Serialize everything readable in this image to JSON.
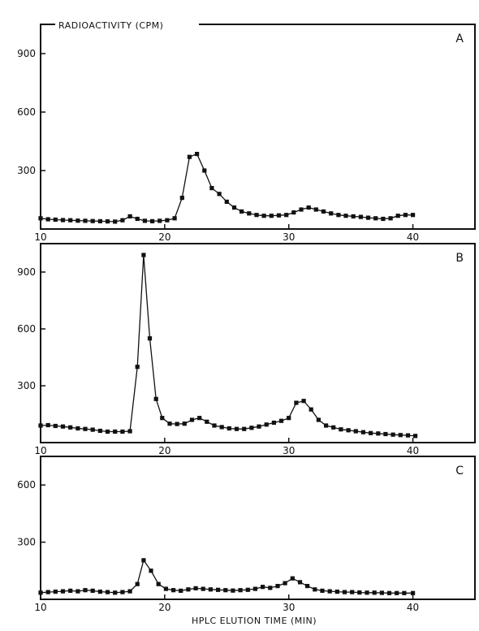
{
  "figure": {
    "ylabel": "RADIOACTIVITY (CPM)",
    "xlabel": "HPLC ELUTION TIME (MIN)"
  },
  "chart_data": [
    {
      "type": "line",
      "panel": "A",
      "xlim": [
        10,
        45
      ],
      "ylim": [
        0,
        1050
      ],
      "xticks": [
        10,
        20,
        30,
        40
      ],
      "yticks": [
        300,
        600,
        900
      ],
      "x": [
        10,
        10.6,
        11.2,
        11.8,
        12.4,
        13,
        13.6,
        14.2,
        14.8,
        15.4,
        16,
        16.6,
        17.2,
        17.8,
        18.4,
        19,
        19.6,
        20.2,
        20.8,
        21.4,
        22,
        22.6,
        23.2,
        23.8,
        24.4,
        25,
        25.6,
        26.2,
        26.8,
        27.4,
        28,
        28.6,
        29.2,
        29.8,
        30.4,
        31,
        31.6,
        32.2,
        32.8,
        33.4,
        34,
        34.6,
        35.2,
        35.8,
        36.4,
        37,
        37.6,
        38.2,
        38.8,
        39.4,
        40
      ],
      "series": [
        {
          "values": [
            55,
            50,
            48,
            46,
            45,
            43,
            42,
            41,
            40,
            39,
            38,
            45,
            65,
            52,
            42,
            40,
            42,
            45,
            55,
            160,
            370,
            385,
            300,
            210,
            180,
            140,
            110,
            90,
            80,
            72,
            68,
            68,
            70,
            72,
            85,
            100,
            110,
            100,
            90,
            80,
            72,
            68,
            65,
            62,
            58,
            55,
            52,
            55,
            68,
            72,
            72
          ]
        }
      ]
    },
    {
      "type": "line",
      "panel": "B",
      "xlim": [
        10,
        45
      ],
      "ylim": [
        0,
        1050
      ],
      "xticks": [
        10,
        20,
        30,
        40
      ],
      "yticks": [
        300,
        600,
        900
      ],
      "x": [
        10,
        10.6,
        11.2,
        11.8,
        12.4,
        13,
        13.6,
        14.2,
        14.8,
        15.4,
        16,
        16.6,
        17.2,
        17.8,
        18.3,
        18.8,
        19.3,
        19.8,
        20.4,
        21,
        21.6,
        22.2,
        22.8,
        23.4,
        24,
        24.6,
        25.2,
        25.8,
        26.4,
        27,
        27.6,
        28.2,
        28.8,
        29.4,
        30,
        30.6,
        31.2,
        31.8,
        32.4,
        33,
        33.6,
        34.2,
        34.8,
        35.4,
        36,
        36.6,
        37.2,
        37.8,
        38.4,
        39,
        39.6,
        40.2
      ],
      "series": [
        {
          "values": [
            90,
            92,
            88,
            85,
            80,
            75,
            72,
            68,
            62,
            58,
            58,
            58,
            60,
            400,
            990,
            550,
            230,
            130,
            100,
            98,
            100,
            120,
            130,
            110,
            90,
            82,
            75,
            72,
            72,
            78,
            85,
            95,
            105,
            115,
            130,
            210,
            220,
            175,
            120,
            90,
            80,
            70,
            65,
            60,
            55,
            50,
            48,
            45,
            42,
            40,
            38,
            35
          ]
        }
      ]
    },
    {
      "type": "line",
      "panel": "C",
      "xlim": [
        10,
        45
      ],
      "ylim": [
        0,
        750
      ],
      "xticks": [
        10,
        20,
        30,
        40
      ],
      "yticks": [
        300,
        600
      ],
      "x": [
        10,
        10.6,
        11.2,
        11.8,
        12.4,
        13,
        13.6,
        14.2,
        14.8,
        15.4,
        16,
        16.6,
        17.2,
        17.8,
        18.3,
        18.9,
        19.5,
        20.1,
        20.7,
        21.3,
        21.9,
        22.5,
        23.1,
        23.7,
        24.3,
        24.9,
        25.5,
        26.1,
        26.7,
        27.3,
        27.9,
        28.5,
        29.1,
        29.7,
        30.3,
        30.9,
        31.5,
        32.1,
        32.7,
        33.3,
        33.9,
        34.5,
        35.1,
        35.7,
        36.3,
        36.9,
        37.5,
        38.1,
        38.7,
        39.3,
        40
      ],
      "series": [
        {
          "values": [
            35,
            38,
            40,
            42,
            45,
            42,
            48,
            45,
            40,
            38,
            35,
            38,
            42,
            80,
            205,
            150,
            80,
            55,
            48,
            45,
            52,
            58,
            55,
            52,
            50,
            48,
            46,
            48,
            50,
            55,
            65,
            60,
            70,
            85,
            110,
            90,
            70,
            52,
            45,
            42,
            40,
            38,
            38,
            36,
            35,
            35,
            34,
            33,
            33,
            33,
            33
          ]
        }
      ]
    }
  ]
}
